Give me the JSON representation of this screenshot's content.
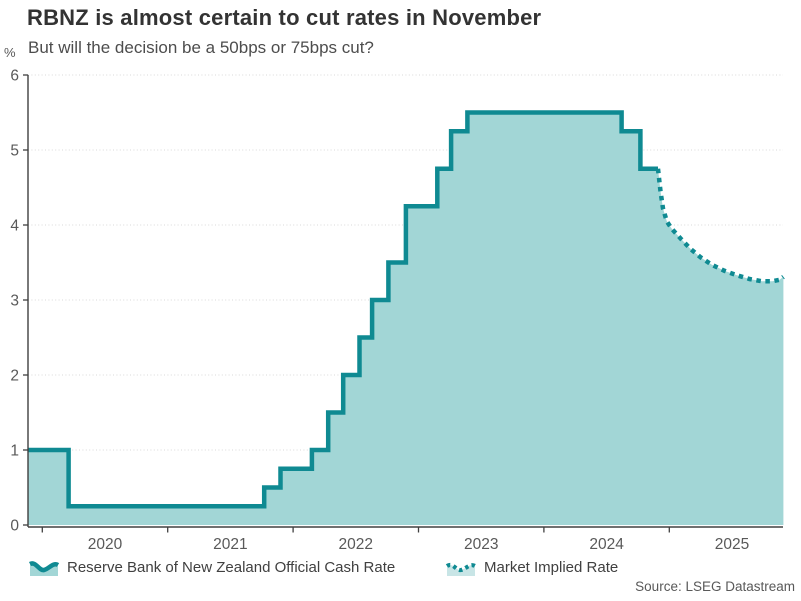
{
  "header": {
    "title": "RBNZ is almost certain to cut rates in November",
    "subtitle": "But will the decision be a 50bps or 75bps cut?",
    "unit_label": "%"
  },
  "legend": {
    "items": [
      {
        "label": "Reserve Bank of New Zealand Official Cash Rate",
        "style": "solid-line-swatch"
      },
      {
        "label": "Market Implied Rate",
        "style": "dotted-line-swatch"
      }
    ]
  },
  "source": "Source: LSEG Datastream",
  "colors": {
    "line": "#0f8a92",
    "fill": "#a2d6d6",
    "fill_light": "#c8e5e6",
    "grid": "#d9d9d9",
    "axis": "#404040",
    "tick_text": "#595959"
  },
  "chart_data": {
    "type": "line",
    "title": "RBNZ is almost certain to cut rates in November",
    "subtitle": "But will the decision be a 50bps or 75bps cut?",
    "ylabel": "%",
    "ylim": [
      0,
      6
    ],
    "yticks": [
      0,
      1,
      2,
      3,
      4,
      5,
      6
    ],
    "xticks": [
      2020,
      2021,
      2022,
      2023,
      2024,
      2025
    ],
    "x_range": [
      2019.886,
      2025.907
    ],
    "grid": "horizontal-dotted",
    "legend_position": "bottom",
    "series": [
      {
        "name": "Reserve Bank of New Zealand Official Cash Rate",
        "draw": "step",
        "line": "solid",
        "points": [
          [
            2019.89,
            1.0
          ],
          [
            2020.21,
            0.25
          ],
          [
            2021.77,
            0.5
          ],
          [
            2021.9,
            0.75
          ],
          [
            2022.15,
            1.0
          ],
          [
            2022.28,
            1.5
          ],
          [
            2022.4,
            2.0
          ],
          [
            2022.53,
            2.5
          ],
          [
            2022.63,
            3.0
          ],
          [
            2022.76,
            3.5
          ],
          [
            2022.9,
            4.25
          ],
          [
            2023.15,
            4.75
          ],
          [
            2023.26,
            5.25
          ],
          [
            2023.39,
            5.5
          ],
          [
            2024.62,
            5.25
          ],
          [
            2024.77,
            4.75
          ]
        ],
        "end_x": 2024.91
      },
      {
        "name": "Market Implied Rate",
        "draw": "line",
        "line": "dotted",
        "points": [
          [
            2024.91,
            4.75
          ],
          [
            2024.93,
            4.45
          ],
          [
            2024.95,
            4.22
          ],
          [
            2024.98,
            4.05
          ],
          [
            2025.02,
            3.95
          ],
          [
            2025.09,
            3.82
          ],
          [
            2025.17,
            3.68
          ],
          [
            2025.25,
            3.57
          ],
          [
            2025.34,
            3.47
          ],
          [
            2025.44,
            3.39
          ],
          [
            2025.54,
            3.33
          ],
          [
            2025.64,
            3.28
          ],
          [
            2025.74,
            3.25
          ],
          [
            2025.82,
            3.25
          ],
          [
            2025.88,
            3.27
          ],
          [
            2025.91,
            3.31
          ]
        ]
      }
    ]
  }
}
